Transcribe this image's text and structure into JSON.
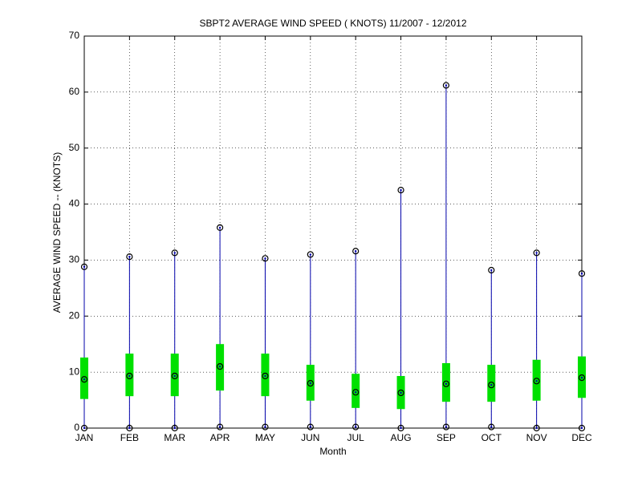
{
  "chart_data": {
    "type": "box",
    "title": "SBPT2  AVERAGE WIND SPEED ( KNOTS) 11/2007 - 12/2012",
    "x_label": "Month",
    "y_label": "AVERAGE WIND SPEED -- (KNOTS)",
    "categories": [
      "JAN",
      "FEB",
      "MAR",
      "APR",
      "MAY",
      "JUN",
      "JUL",
      "AUG",
      "SEP",
      "OCT",
      "NOV",
      "DEC"
    ],
    "boxes": [
      {
        "min": 0,
        "q1": 5.2,
        "mean": 8.7,
        "q3": 12.6,
        "max": 28.8
      },
      {
        "min": 0,
        "q1": 5.7,
        "mean": 9.3,
        "q3": 13.3,
        "max": 30.6
      },
      {
        "min": 0,
        "q1": 5.7,
        "mean": 9.3,
        "q3": 13.3,
        "max": 31.3
      },
      {
        "min": 0.2,
        "q1": 6.7,
        "mean": 11.0,
        "q3": 15.0,
        "max": 35.8
      },
      {
        "min": 0.2,
        "q1": 5.7,
        "mean": 9.3,
        "q3": 13.3,
        "max": 30.3
      },
      {
        "min": 0.2,
        "q1": 4.9,
        "mean": 8.0,
        "q3": 11.3,
        "max": 31.0
      },
      {
        "min": 0.2,
        "q1": 3.6,
        "mean": 6.4,
        "q3": 9.7,
        "max": 31.6
      },
      {
        "min": 0,
        "q1": 3.4,
        "mean": 6.3,
        "q3": 9.3,
        "max": 42.5
      },
      {
        "min": 0.2,
        "q1": 4.7,
        "mean": 7.9,
        "q3": 11.6,
        "max": 61.2
      },
      {
        "min": 0.2,
        "q1": 4.7,
        "mean": 7.7,
        "q3": 11.3,
        "max": 28.2
      },
      {
        "min": 0,
        "q1": 4.9,
        "mean": 8.4,
        "q3": 12.2,
        "max": 31.3
      },
      {
        "min": 0,
        "q1": 5.4,
        "mean": 9.0,
        "q3": 12.8,
        "max": 27.6
      }
    ],
    "whisker_color": "#0000aa",
    "box_color": "#00e000",
    "marker_color": "#000000",
    "ylim": [
      0,
      70
    ],
    "yticks": [
      0,
      10,
      20,
      30,
      40,
      50,
      60,
      70
    ],
    "grid": true
  }
}
